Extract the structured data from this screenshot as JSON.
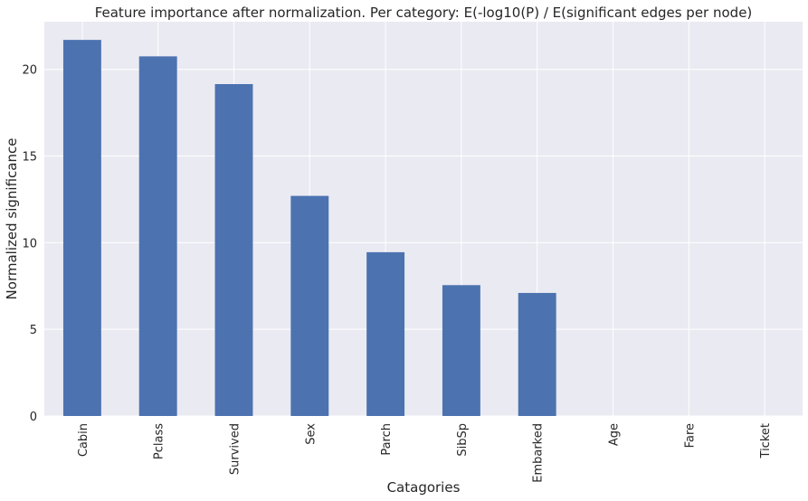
{
  "chart_data": {
    "type": "bar",
    "title": "Feature importance after normalization. Per category: E(-log10(P) / E(significant edges per node)",
    "xlabel": "Catagories",
    "ylabel": "Normalized significance",
    "categories": [
      "Cabin",
      "Pclass",
      "Survived",
      "Sex",
      "Parch",
      "SibSp",
      "Embarked",
      "Age",
      "Fare",
      "Ticket"
    ],
    "values": [
      21.7,
      20.75,
      19.15,
      12.7,
      9.45,
      7.55,
      7.1,
      0,
      0,
      0
    ],
    "ylim": [
      0,
      22.75
    ],
    "yticks": [
      0,
      5,
      10,
      15,
      20
    ],
    "grid": true,
    "legend": "none",
    "colors": {
      "bar": "#4c72b0",
      "plot_background": "#eaeaf2",
      "grid": "#ffffff"
    }
  }
}
